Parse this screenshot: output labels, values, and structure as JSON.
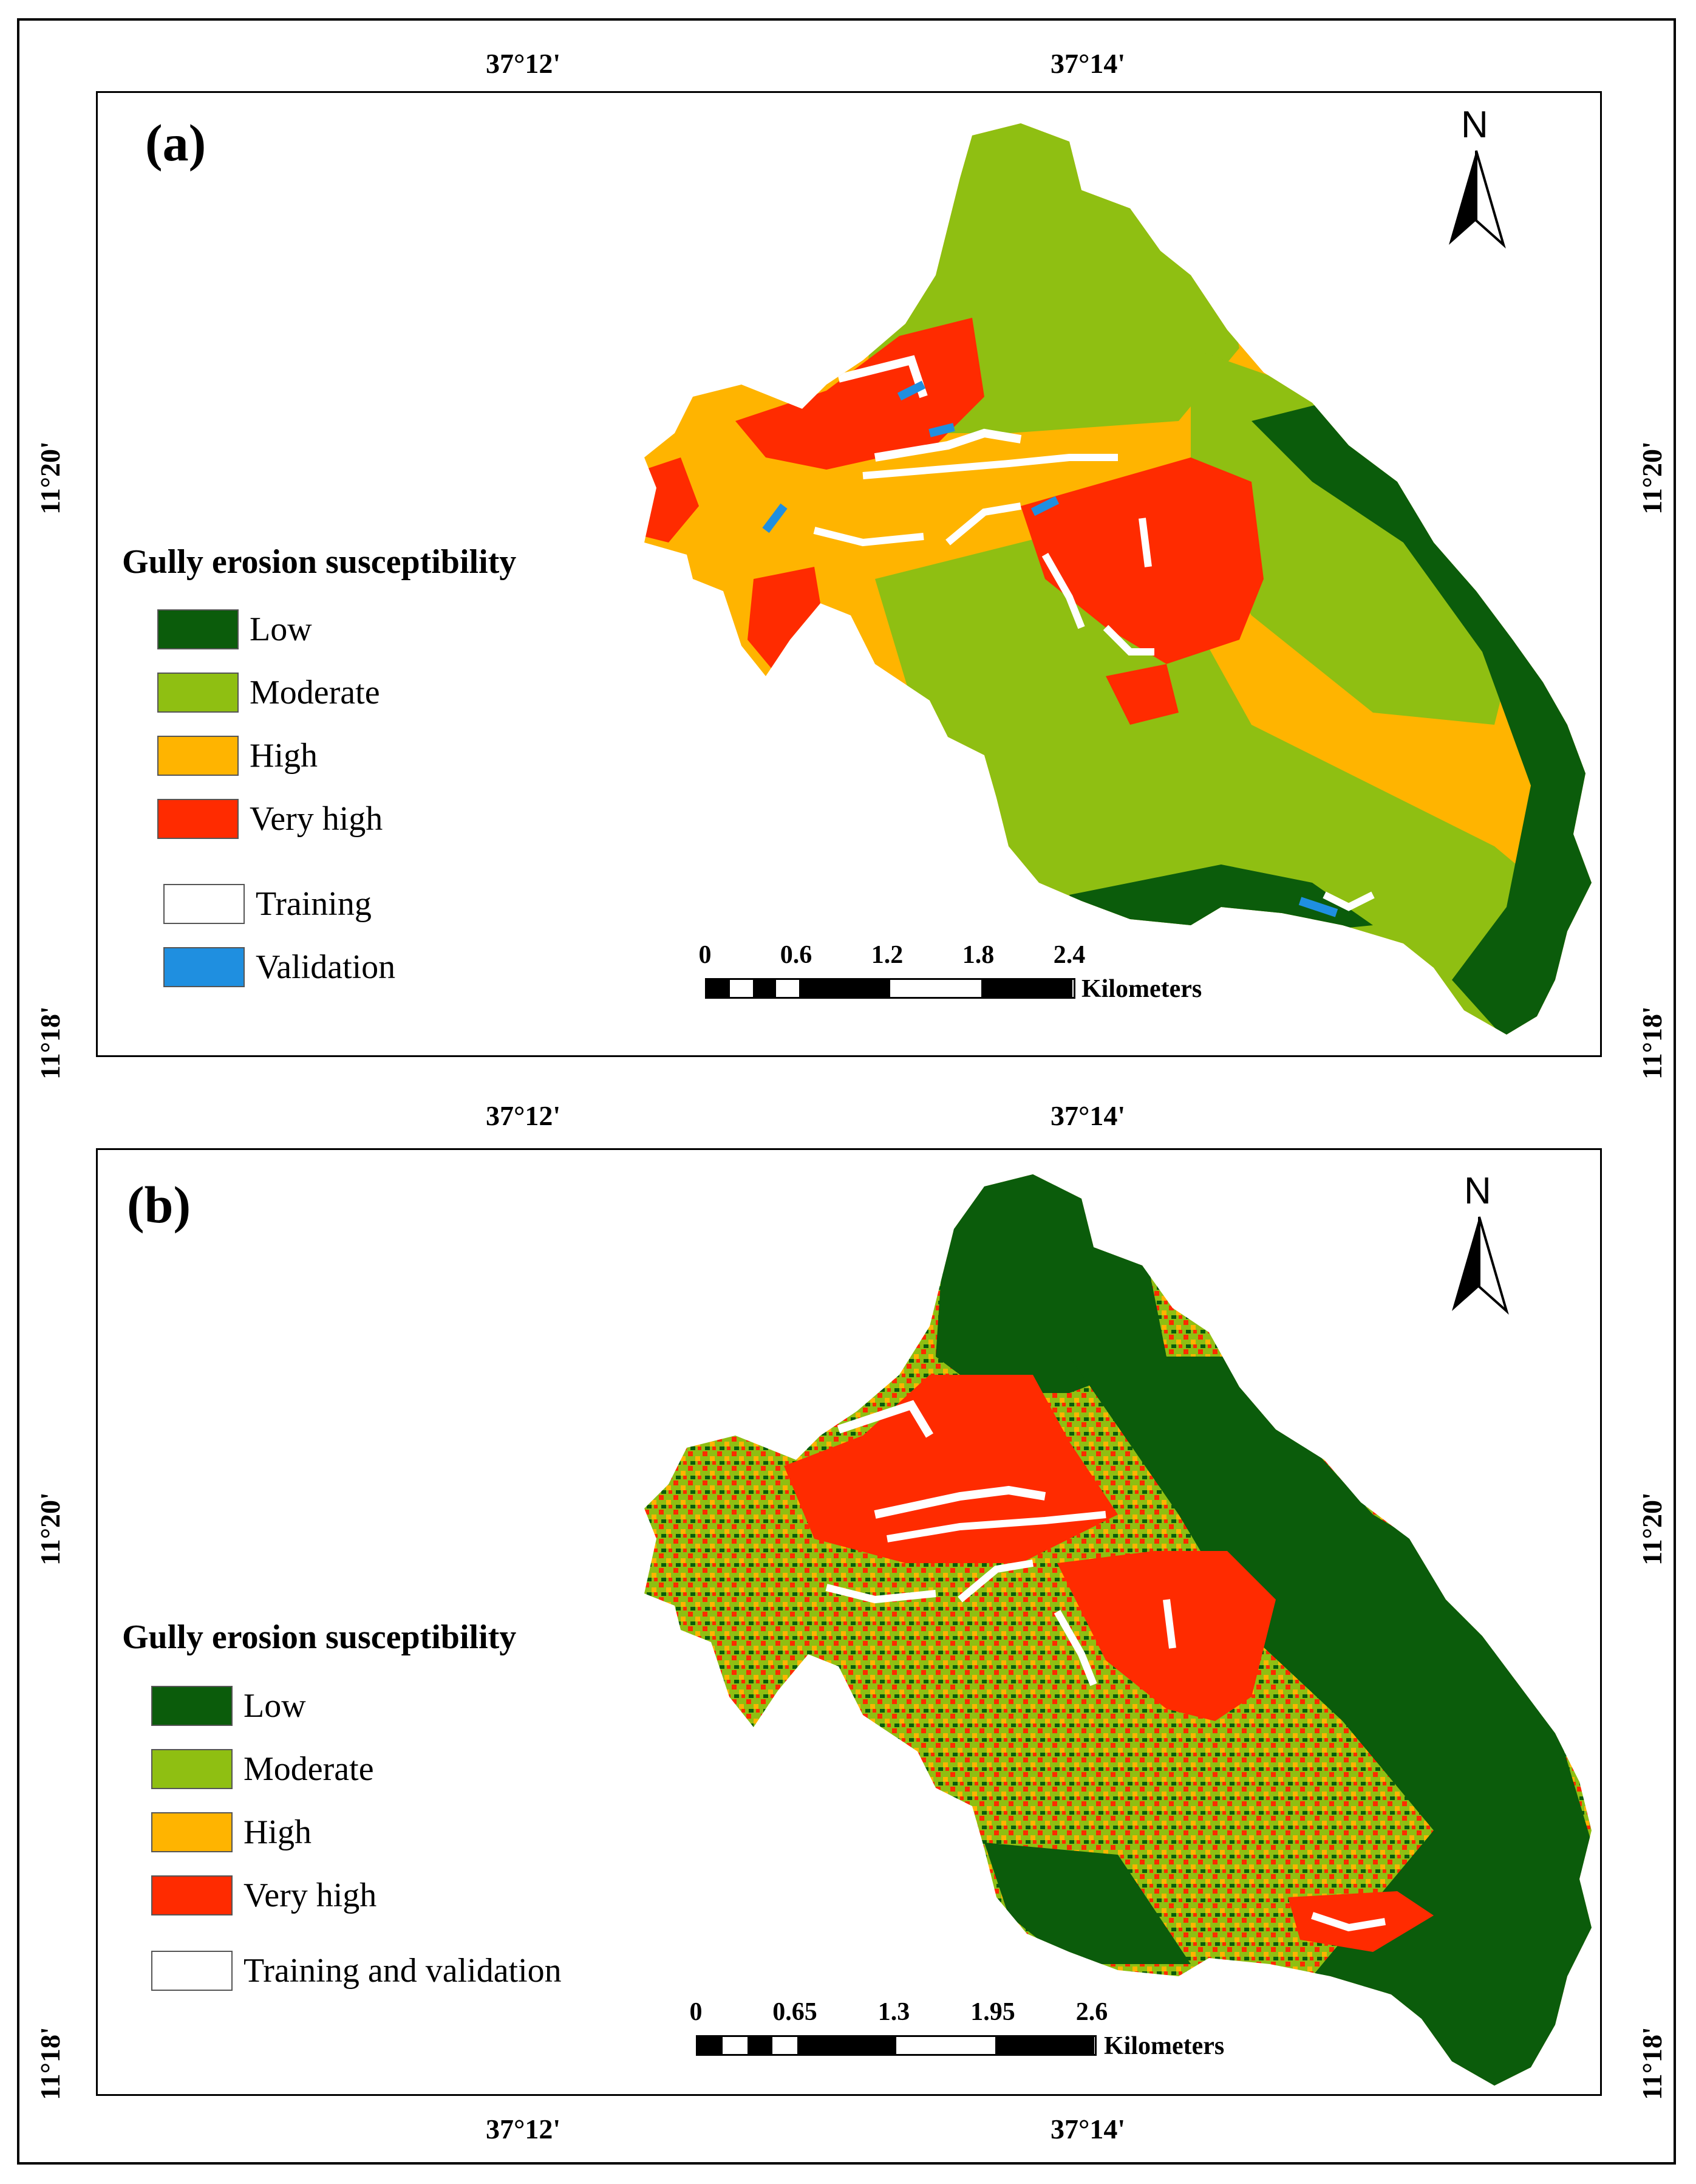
{
  "colors": {
    "low": "#0b5c0b",
    "moderate": "#8fbf12",
    "high": "#ffb400",
    "very_high": "#ff2b00",
    "training": "#ffffff",
    "validation": "#1f8fe0"
  },
  "coords": {
    "lon_left": "37°12'",
    "lon_right": "37°14'",
    "lat_top": "11°20'",
    "lat_bottom": "11°18'"
  },
  "panel_a": {
    "letter": "(a)",
    "legend_title": "Gully erosion susceptibility",
    "legend": [
      "Low",
      "Moderate",
      "High",
      "Very high"
    ],
    "training_label": "Training",
    "validation_label": "Validation",
    "north": "N",
    "scale_ticks": [
      "0",
      "0.6",
      "1.2",
      "1.8",
      "2.4"
    ],
    "scale_unit": "Kilometers"
  },
  "panel_b": {
    "letter": "(b)",
    "legend_title": "Gully erosion susceptibility",
    "legend": [
      "Low",
      "Moderate",
      "High",
      "Very high"
    ],
    "training_validation_label": "Training and validation",
    "north": "N",
    "scale_ticks": [
      "0",
      "0.65",
      "1.3",
      "1.95",
      "2.6"
    ],
    "scale_unit": "Kilometers"
  }
}
